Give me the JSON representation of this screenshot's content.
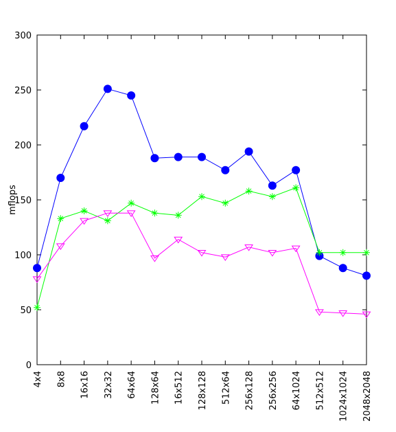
{
  "chart_data": {
    "type": "line",
    "title": "",
    "xlabel": "",
    "ylabel": "mflops",
    "ylim": [
      0,
      300
    ],
    "yticks": [
      0,
      50,
      100,
      150,
      200,
      250,
      300
    ],
    "grid": false,
    "categories": [
      "4x4",
      "8x8",
      "16x16",
      "32x32",
      "64x64",
      "128x64",
      "16x512",
      "128x128",
      "512x64",
      "256x128",
      "256x256",
      "64x1024",
      "512x512",
      "1024x1024",
      "2048x2048"
    ],
    "series": [
      {
        "color": "#0000ff",
        "marker": "filled-circle",
        "values": [
          88,
          170,
          217,
          251,
          245,
          188,
          189,
          189,
          177,
          194,
          163,
          177,
          99,
          88,
          81
        ]
      },
      {
        "color": "#00ff00",
        "marker": "star",
        "values": [
          52,
          133,
          140,
          131,
          147,
          138,
          136,
          153,
          147,
          158,
          153,
          161,
          102,
          102,
          102
        ]
      },
      {
        "color": "#ff00ff",
        "marker": "open-triangle-down",
        "values": [
          78,
          108,
          131,
          138,
          138,
          97,
          114,
          102,
          98,
          107,
          102,
          106,
          48,
          47,
          46
        ]
      }
    ]
  }
}
